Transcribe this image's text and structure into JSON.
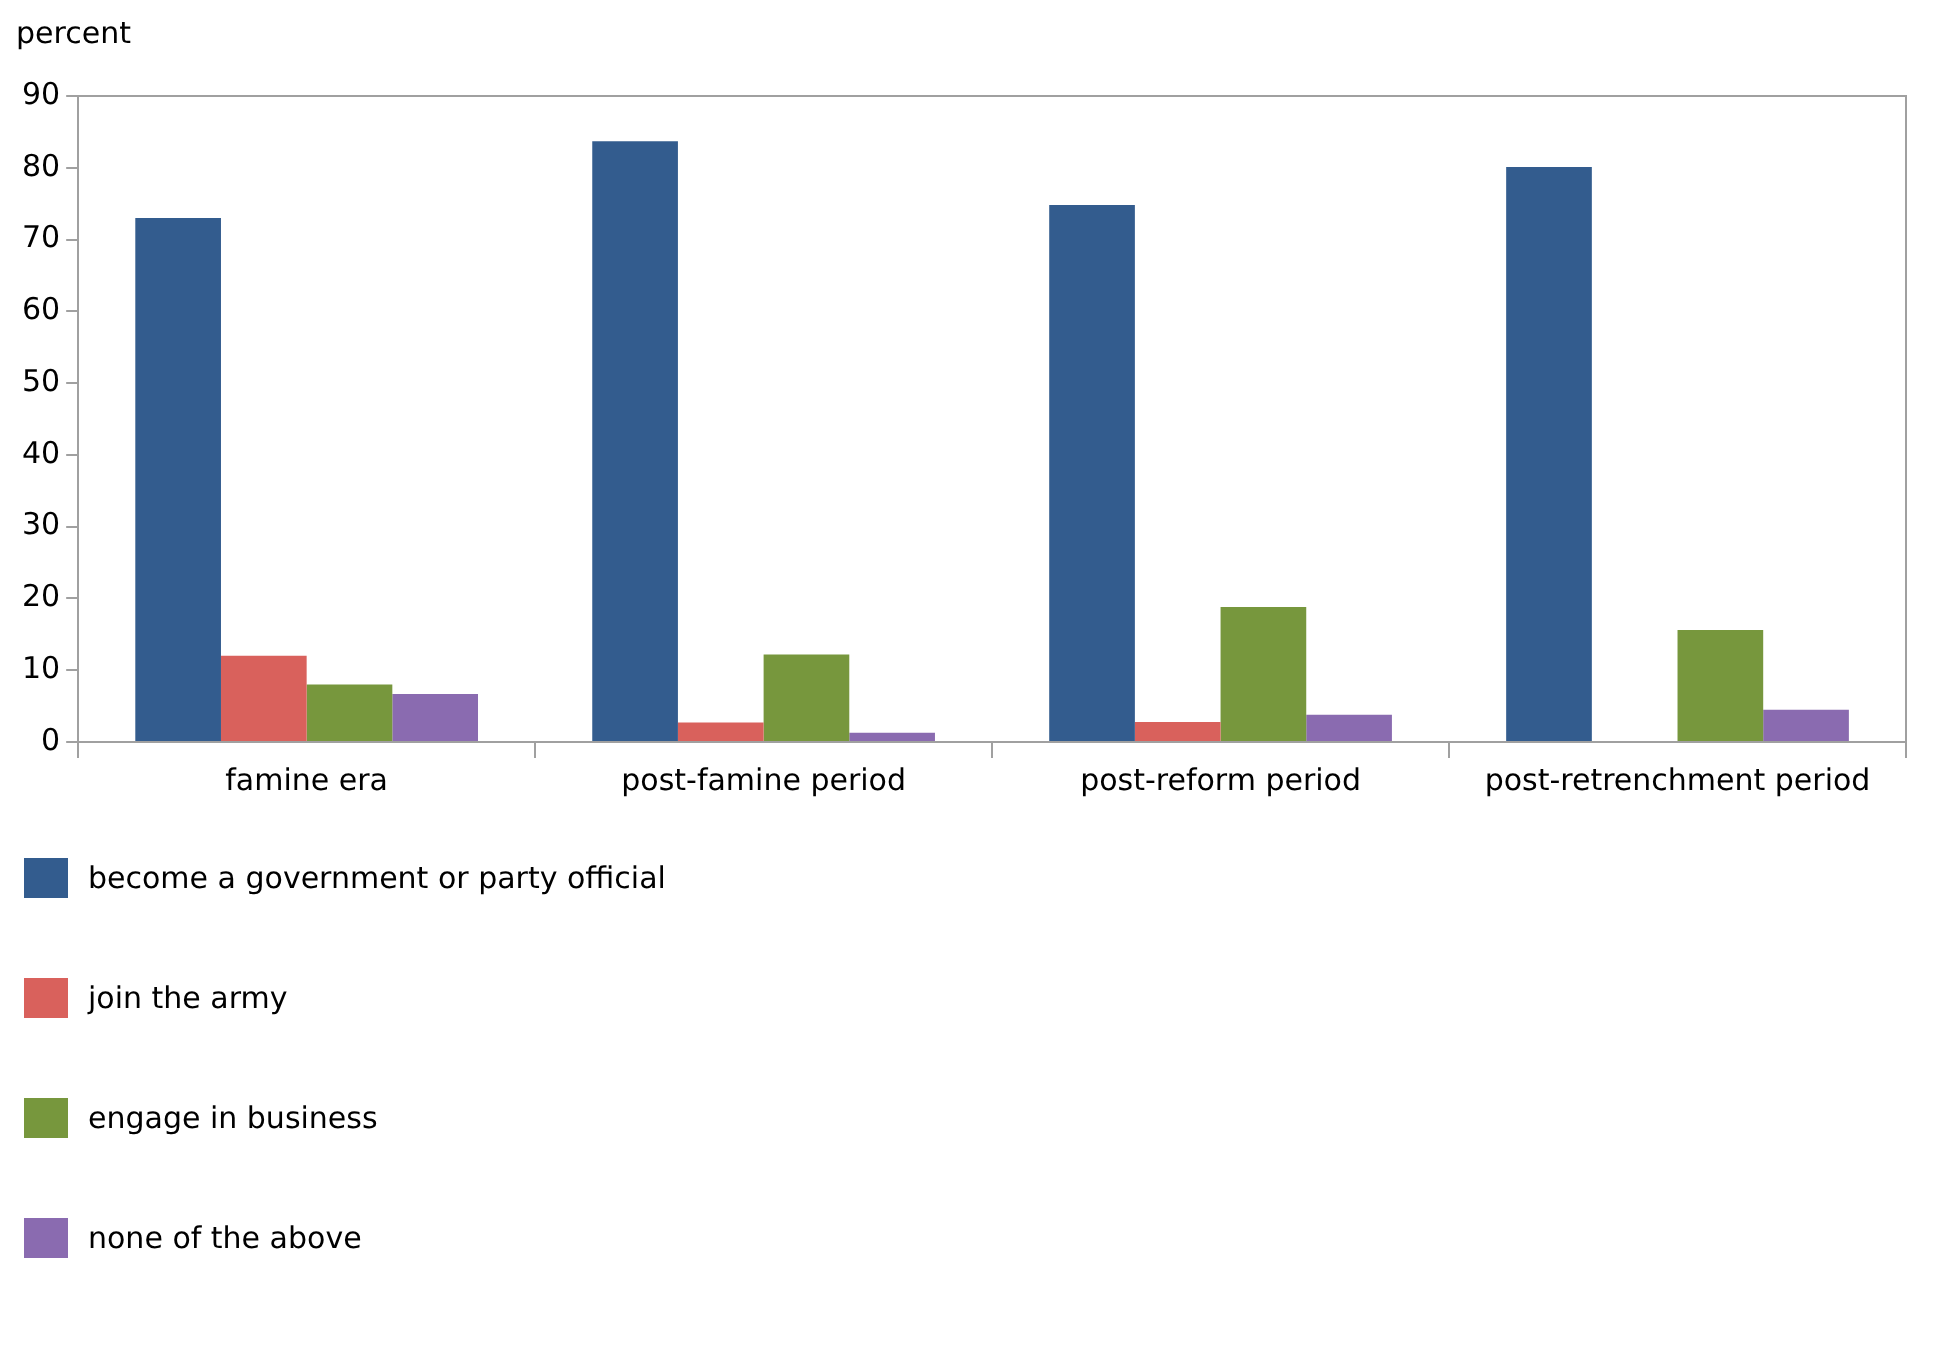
{
  "chart_data": {
    "type": "bar",
    "ylabel": "percent",
    "categories": [
      "famine era",
      "post-famine period",
      "post-reform period",
      "post-retrenchment period"
    ],
    "series": [
      {
        "name": "become a government or party official",
        "color": "#335c8e",
        "values": [
          73.0,
          83.7,
          74.8,
          80.1
        ]
      },
      {
        "name": "join the army",
        "color": "#d9615c",
        "values": [
          12.0,
          2.7,
          2.8,
          null
        ]
      },
      {
        "name": "engage in business",
        "color": "#77973d",
        "values": [
          8.0,
          12.2,
          18.8,
          15.6
        ]
      },
      {
        "name": "none of the above",
        "color": "#8a6bb0",
        "values": [
          6.7,
          1.3,
          3.8,
          4.5
        ]
      }
    ],
    "ylim": [
      0,
      90
    ],
    "yticks": [
      0,
      10,
      20,
      30,
      40,
      50,
      60,
      70,
      80,
      90
    ],
    "grid": false,
    "legend": "bottom"
  }
}
